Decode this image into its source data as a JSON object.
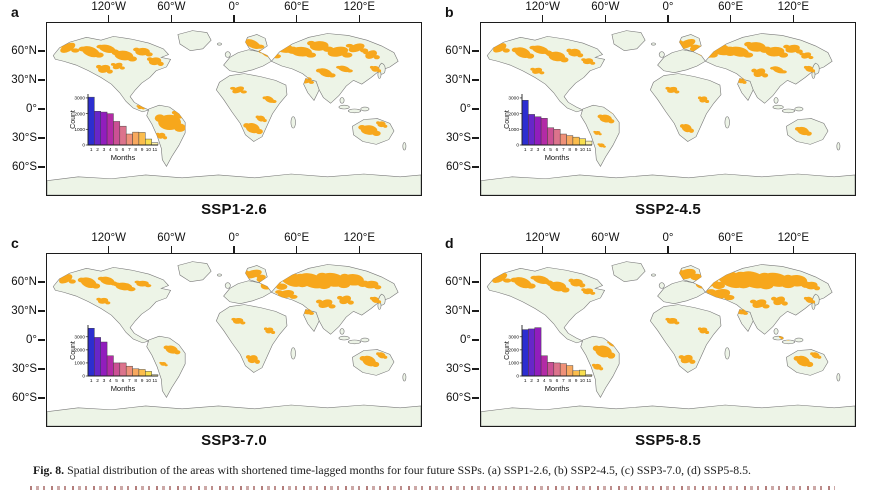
{
  "figure": {
    "caption_label": "Fig. 8.",
    "caption_text": "Spatial distribution of the areas with shortened time-lagged months for four future SSPs. (a) SSP1-2.6, (b) SSP2-4.5, (c) SSP3-7.0, (d) SSP5-8.5."
  },
  "axes": {
    "lon_ticks": [
      "120°W",
      "60°W",
      "0°",
      "60°E",
      "120°E"
    ],
    "lon_positions": [
      60,
      120,
      180,
      240,
      300
    ],
    "lat_ticks": [
      "60°N",
      "30°N",
      "0°",
      "30°S",
      "60°S"
    ],
    "lat_positions": [
      30,
      60,
      90,
      120,
      150
    ]
  },
  "colors": {
    "land": "#edf4e7",
    "coast": "#7a7a7a",
    "highlight": "#f7a71c",
    "frame": "#1c1c1c",
    "bar_border": "#3d3d3d",
    "bar_palette": [
      "#2c2ed0",
      "#6726c9",
      "#911dbd",
      "#b32ba6",
      "#cb5094",
      "#dc738c",
      "#ef9179",
      "#f8a95f",
      "#fbbd4d",
      "#f8df4e",
      "#fcf2a8"
    ]
  },
  "panels": [
    {
      "letter": "a",
      "title": "SSP1-2.6",
      "blobs": [
        [
          20,
          26,
          8,
          4
        ],
        [
          42,
          30,
          9,
          5
        ],
        [
          58,
          27,
          8,
          4
        ],
        [
          74,
          34,
          9,
          5
        ],
        [
          92,
          30,
          7,
          4
        ],
        [
          104,
          40,
          6,
          4
        ],
        [
          55,
          48,
          6,
          4
        ],
        [
          68,
          45,
          5,
          3
        ],
        [
          198,
          22,
          8,
          4
        ],
        [
          214,
          32,
          8,
          4
        ],
        [
          228,
          26,
          9,
          5
        ],
        [
          245,
          30,
          10,
          5
        ],
        [
          262,
          24,
          9,
          5
        ],
        [
          280,
          30,
          10,
          5
        ],
        [
          298,
          26,
          8,
          4
        ],
        [
          312,
          33,
          6,
          4
        ],
        [
          268,
          52,
          7,
          4
        ],
        [
          286,
          48,
          6,
          3
        ],
        [
          316,
          48,
          4,
          3
        ],
        [
          118,
          104,
          11,
          8
        ],
        [
          128,
          96,
          6,
          4
        ],
        [
          110,
          118,
          4,
          3
        ],
        [
          184,
          70,
          6,
          3
        ],
        [
          214,
          80,
          5,
          3
        ],
        [
          198,
          110,
          7,
          5
        ],
        [
          206,
          100,
          4,
          3
        ],
        [
          310,
          112,
          8,
          5
        ],
        [
          322,
          106,
          4,
          3
        ],
        [
          90,
          88,
          3,
          2
        ],
        [
          250,
          60,
          5,
          3
        ]
      ]
    },
    {
      "letter": "b",
      "title": "SSP2-4.5",
      "blobs": [
        [
          18,
          26,
          7,
          4
        ],
        [
          40,
          31,
          8,
          5
        ],
        [
          57,
          28,
          8,
          4
        ],
        [
          73,
          35,
          8,
          5
        ],
        [
          90,
          31,
          6,
          4
        ],
        [
          103,
          40,
          5,
          3
        ],
        [
          54,
          50,
          5,
          3
        ],
        [
          198,
          22,
          9,
          4
        ],
        [
          214,
          30,
          10,
          5
        ],
        [
          230,
          27,
          11,
          6
        ],
        [
          248,
          30,
          10,
          5
        ],
        [
          265,
          25,
          9,
          5
        ],
        [
          283,
          30,
          9,
          5
        ],
        [
          300,
          27,
          7,
          4
        ],
        [
          313,
          34,
          5,
          3
        ],
        [
          268,
          52,
          6,
          4
        ],
        [
          286,
          49,
          6,
          3
        ],
        [
          316,
          48,
          4,
          3
        ],
        [
          120,
          100,
          6,
          4
        ],
        [
          128,
          92,
          4,
          3
        ],
        [
          112,
          115,
          3,
          2
        ],
        [
          184,
          70,
          5,
          3
        ],
        [
          214,
          80,
          4,
          3
        ],
        [
          198,
          110,
          5,
          4
        ],
        [
          310,
          113,
          6,
          4
        ],
        [
          250,
          60,
          4,
          3
        ],
        [
          116,
          128,
          3,
          2
        ]
      ]
    },
    {
      "letter": "c",
      "title": "SSP3-7.0",
      "blobs": [
        [
          18,
          26,
          7,
          4
        ],
        [
          40,
          30,
          8,
          5
        ],
        [
          58,
          28,
          7,
          4
        ],
        [
          74,
          34,
          8,
          4
        ],
        [
          92,
          31,
          6,
          3
        ],
        [
          54,
          49,
          5,
          3
        ],
        [
          198,
          21,
          9,
          4
        ],
        [
          216,
          30,
          11,
          6
        ],
        [
          235,
          26,
          12,
          7
        ],
        [
          255,
          28,
          13,
          7
        ],
        [
          275,
          27,
          12,
          7
        ],
        [
          295,
          27,
          10,
          6
        ],
        [
          312,
          32,
          7,
          4
        ],
        [
          230,
          42,
          8,
          4
        ],
        [
          268,
          52,
          7,
          4
        ],
        [
          287,
          48,
          6,
          4
        ],
        [
          316,
          48,
          4,
          3
        ],
        [
          120,
          100,
          6,
          4
        ],
        [
          130,
          92,
          4,
          3
        ],
        [
          112,
          115,
          3,
          2
        ],
        [
          184,
          70,
          5,
          3
        ],
        [
          214,
          80,
          4,
          3
        ],
        [
          198,
          110,
          5,
          4
        ],
        [
          310,
          112,
          7,
          5
        ],
        [
          322,
          106,
          4,
          3
        ],
        [
          250,
          60,
          5,
          3
        ]
      ]
    },
    {
      "letter": "d",
      "title": "SSP5-8.5",
      "blobs": [
        [
          18,
          25,
          8,
          4
        ],
        [
          40,
          30,
          9,
          5
        ],
        [
          58,
          27,
          8,
          4
        ],
        [
          74,
          34,
          8,
          5
        ],
        [
          92,
          30,
          6,
          4
        ],
        [
          103,
          39,
          5,
          3
        ],
        [
          198,
          21,
          9,
          5
        ],
        [
          218,
          28,
          12,
          7
        ],
        [
          240,
          26,
          14,
          8
        ],
        [
          262,
          27,
          14,
          8
        ],
        [
          284,
          27,
          13,
          7
        ],
        [
          304,
          28,
          10,
          6
        ],
        [
          318,
          33,
          6,
          4
        ],
        [
          230,
          42,
          10,
          5
        ],
        [
          268,
          52,
          7,
          4
        ],
        [
          287,
          49,
          6,
          4
        ],
        [
          316,
          48,
          4,
          3
        ],
        [
          118,
          102,
          8,
          6
        ],
        [
          128,
          94,
          5,
          3
        ],
        [
          112,
          118,
          4,
          3
        ],
        [
          184,
          70,
          5,
          3
        ],
        [
          214,
          80,
          4,
          3
        ],
        [
          198,
          110,
          6,
          4
        ],
        [
          310,
          112,
          7,
          5
        ],
        [
          322,
          106,
          4,
          3
        ],
        [
          250,
          60,
          5,
          3
        ],
        [
          292,
          88,
          4,
          2
        ]
      ]
    }
  ],
  "chart_data": [
    {
      "type": "bar",
      "panel": "a",
      "title": "SSP1-2.6 inset histogram",
      "categories": [
        1,
        2,
        3,
        4,
        5,
        6,
        7,
        8,
        9,
        10,
        11
      ],
      "values": [
        3050,
        2150,
        2100,
        2000,
        1500,
        1200,
        700,
        820,
        800,
        380,
        150
      ],
      "xlabel": "Months",
      "ylabel": "Count",
      "yticks": [
        0,
        1000,
        2000,
        3000
      ],
      "ylim": [
        0,
        3250
      ],
      "grid": false,
      "legend": "none"
    },
    {
      "type": "bar",
      "panel": "b",
      "title": "SSP2-4.5 inset histogram",
      "categories": [
        1,
        2,
        3,
        4,
        5,
        6,
        7,
        8,
        9,
        10,
        11
      ],
      "values": [
        2850,
        1950,
        1800,
        1700,
        1100,
        1000,
        700,
        600,
        500,
        400,
        250
      ],
      "xlabel": "Months",
      "ylabel": "Count",
      "yticks": [
        0,
        1000,
        2000,
        3000
      ],
      "ylim": [
        0,
        3250
      ],
      "grid": false,
      "legend": "none"
    },
    {
      "type": "bar",
      "panel": "c",
      "title": "SSP3-7.0 inset histogram",
      "categories": [
        1,
        2,
        3,
        4,
        5,
        6,
        7,
        8,
        9,
        10,
        11
      ],
      "values": [
        3650,
        2950,
        2600,
        1550,
        1000,
        1000,
        750,
        550,
        500,
        350,
        100
      ],
      "xlabel": "Months",
      "ylabel": "Count",
      "yticks": [
        0,
        1000,
        2000,
        3000
      ],
      "ylim": [
        0,
        3900
      ],
      "grid": false,
      "legend": "none"
    },
    {
      "type": "bar",
      "panel": "d",
      "title": "SSP5-8.5 inset histogram",
      "categories": [
        1,
        2,
        3,
        4,
        5,
        6,
        7,
        8,
        9,
        10,
        11
      ],
      "values": [
        3550,
        3600,
        3700,
        1550,
        1050,
        1000,
        950,
        800,
        400,
        450,
        100
      ],
      "xlabel": "Months",
      "ylabel": "Count",
      "yticks": [
        0,
        1000,
        2000,
        3000
      ],
      "ylim": [
        0,
        3900
      ],
      "grid": false,
      "legend": "none"
    }
  ]
}
